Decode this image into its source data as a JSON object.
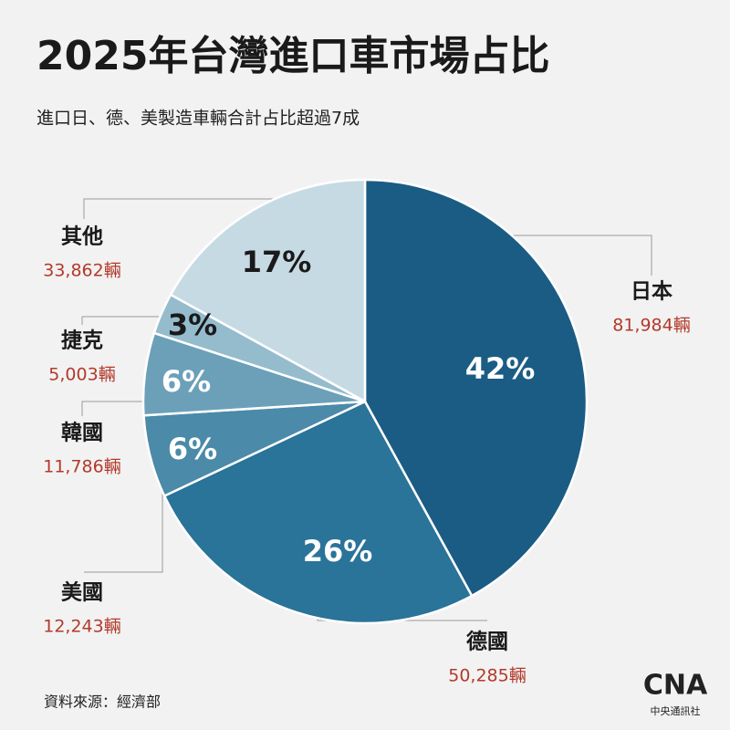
{
  "chart_data": {
    "type": "pie",
    "title": "2025年台灣進口車市場占比",
    "subtitle": "進口日、德、美製造車輛合計占比超過7成",
    "categories": [
      "日本",
      "德國",
      "美國",
      "韓國",
      "捷克",
      "其他"
    ],
    "values": [
      42,
      26,
      6,
      6,
      3,
      17
    ],
    "value_labels": [
      "42%",
      "26%",
      "6%",
      "6%",
      "3%",
      "17%"
    ],
    "counts": [
      81984,
      50285,
      12243,
      11786,
      5003,
      33862
    ],
    "count_labels": [
      "81,984輛",
      "50,285輛",
      "12,243輛",
      "11,786輛",
      "5,003輛",
      "33,862輛"
    ],
    "colors": [
      "#1b5c84",
      "#2a7399",
      "#4b8aa8",
      "#6ca0b9",
      "#94bccd",
      "#c6dae4"
    ],
    "source": "資料來源：經濟部",
    "logo": "CNA",
    "logo_caption": "中央通訊社"
  }
}
